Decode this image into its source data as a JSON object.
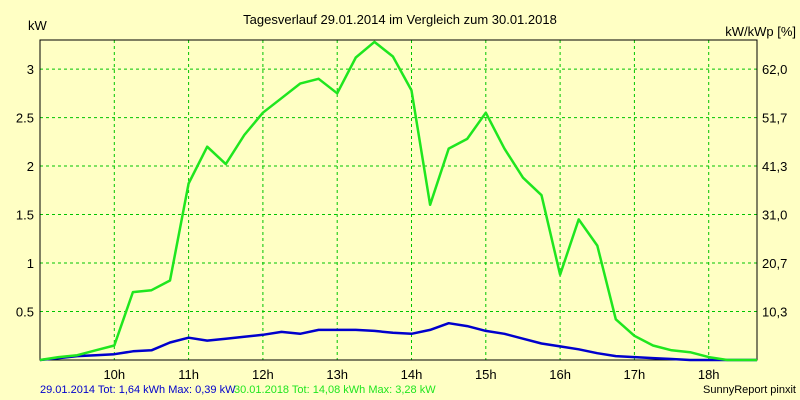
{
  "chart_data": {
    "type": "line",
    "title": "Tagesverlauf 29.01.2014 im Vergleich zum 30.01.2018",
    "ylabel_left": "kW",
    "ylabel_right": "kW/kWp [%]",
    "x_tick_labels": [
      "10h",
      "11h",
      "12h",
      "13h",
      "14h",
      "15h",
      "16h",
      "17h",
      "18h"
    ],
    "x_ticks": [
      10,
      11,
      12,
      13,
      14,
      15,
      16,
      17,
      18
    ],
    "xlim": [
      9.0,
      18.65
    ],
    "y_ticks_left": [
      0.5,
      1,
      1.5,
      2,
      2.5,
      3
    ],
    "y_tick_labels_left": [
      "0.5",
      "1",
      "1.5",
      "2",
      "2.5",
      "3"
    ],
    "y_tick_labels_right": [
      "10,3",
      "20,7",
      "31,0",
      "41,3",
      "51,7",
      "62,0"
    ],
    "ylim": [
      0,
      3.3
    ],
    "grid": true,
    "colors": {
      "background": "#ffffc4",
      "grid": "#00c400",
      "series_2014": "#0000cc",
      "series_2018": "#1fe61f",
      "footer_2014": "#0000cc",
      "footer_2018": "#1fe61f"
    },
    "series": [
      {
        "name": "29.01.2014",
        "color": "#0000cc",
        "x": [
          9.0,
          9.25,
          9.5,
          9.75,
          10.0,
          10.25,
          10.5,
          10.75,
          11.0,
          11.25,
          11.5,
          11.75,
          12.0,
          12.25,
          12.5,
          12.75,
          13.0,
          13.25,
          13.5,
          13.75,
          14.0,
          14.25,
          14.5,
          14.75,
          15.0,
          15.25,
          15.5,
          15.75,
          16.0,
          16.25,
          16.5,
          16.75,
          17.0,
          17.25,
          17.5,
          17.75,
          18.0,
          18.25,
          18.5,
          18.65
        ],
        "y": [
          0.0,
          0.02,
          0.04,
          0.05,
          0.06,
          0.09,
          0.1,
          0.18,
          0.23,
          0.2,
          0.22,
          0.24,
          0.26,
          0.29,
          0.27,
          0.31,
          0.31,
          0.31,
          0.3,
          0.28,
          0.27,
          0.31,
          0.38,
          0.35,
          0.3,
          0.27,
          0.22,
          0.17,
          0.14,
          0.11,
          0.07,
          0.04,
          0.03,
          0.02,
          0.01,
          0.0,
          0.0,
          0.0,
          0.0,
          0.0
        ]
      },
      {
        "name": "30.01.2018",
        "color": "#1fe61f",
        "x": [
          9.0,
          9.25,
          9.5,
          9.75,
          10.0,
          10.25,
          10.5,
          10.75,
          11.0,
          11.25,
          11.5,
          11.75,
          12.0,
          12.25,
          12.5,
          12.75,
          13.0,
          13.25,
          13.5,
          13.75,
          14.0,
          14.25,
          14.5,
          14.75,
          15.0,
          15.25,
          15.5,
          15.75,
          16.0,
          16.25,
          16.5,
          16.75,
          17.0,
          17.25,
          17.5,
          17.75,
          18.0,
          18.25,
          18.5,
          18.65
        ],
        "y": [
          0.0,
          0.03,
          0.05,
          0.1,
          0.15,
          0.7,
          0.72,
          0.82,
          1.82,
          2.2,
          2.02,
          2.32,
          2.55,
          2.7,
          2.85,
          2.9,
          2.75,
          3.12,
          3.28,
          3.13,
          2.78,
          1.6,
          2.18,
          2.28,
          2.55,
          2.18,
          1.88,
          1.7,
          0.88,
          1.45,
          1.18,
          0.42,
          0.25,
          0.15,
          0.1,
          0.08,
          0.03,
          0.0,
          0.0,
          0.0
        ]
      }
    ]
  },
  "footer": {
    "summary_2014": "29.01.2014 Tot: 1,64 kWh Max: 0,39 kW",
    "summary_2018": "30.01.2018 Tot: 14,08 kWh Max: 3,28 kW",
    "credit": "SunnyReport pinxit"
  }
}
